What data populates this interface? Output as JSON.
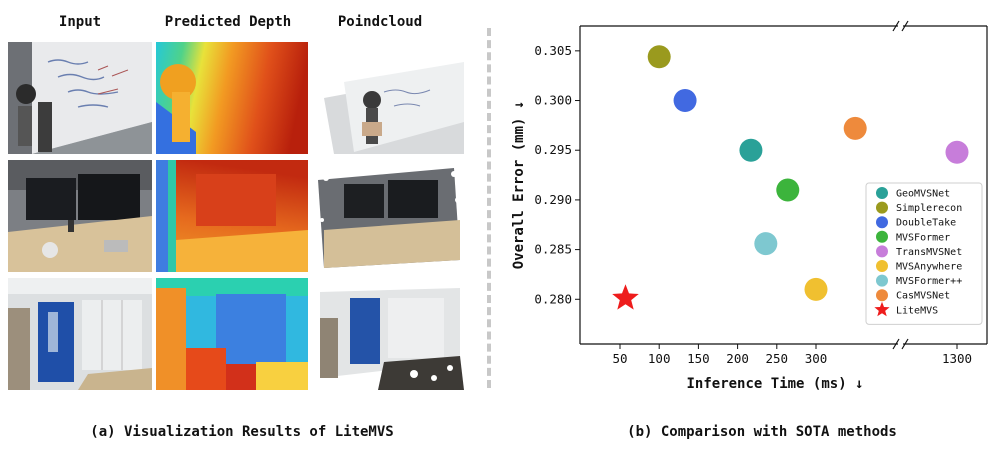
{
  "left_panel": {
    "headers": [
      "Input",
      "Predicted Depth",
      "Poindcloud"
    ],
    "caption": "(a) Visualization Results of LiteMVS"
  },
  "right_panel": {
    "caption": "(b) Comparison with SOTA methods"
  },
  "chart_data": {
    "type": "scatter",
    "title": "",
    "xlabel": "Inference Time (ms) ↓",
    "ylabel": "Overall Error (mm) ↓",
    "x_ticks": [
      "50",
      "100",
      "150",
      "200",
      "250",
      "300",
      "1300"
    ],
    "y_ticks": [
      "0.280",
      "0.285",
      "0.290",
      "0.295",
      "0.300",
      "0.305"
    ],
    "ylim": [
      0.2755,
      0.3075
    ],
    "xlim_segment_1": [
      22,
      368
    ],
    "xlim_segment_2": [
      1285,
      1310
    ],
    "x_axis_break": true,
    "grid": false,
    "legend_position": "right",
    "series": [
      {
        "name": "GeoMVSNet",
        "x": 217,
        "y": 0.295,
        "color": "#2aa198",
        "marker": "circle"
      },
      {
        "name": "Simplerecon",
        "x": 100,
        "y": 0.3044,
        "color": "#9a9a1e",
        "marker": "circle"
      },
      {
        "name": "DoubleTake",
        "x": 133,
        "y": 0.3,
        "color": "#4169e1",
        "marker": "circle"
      },
      {
        "name": "MVSFormer",
        "x": 264,
        "y": 0.291,
        "color": "#3cb43c",
        "marker": "circle"
      },
      {
        "name": "TransMVSNet",
        "x": 1300,
        "y": 0.2948,
        "color": "#c77dda",
        "marker": "circle"
      },
      {
        "name": "MVSAnywhere",
        "x": 300,
        "y": 0.281,
        "color": "#f0c030",
        "marker": "circle"
      },
      {
        "name": "MVSFormer++",
        "x": 236,
        "y": 0.2856,
        "color": "#7ec8d0",
        "marker": "circle"
      },
      {
        "name": "CasMVSNet",
        "x": 350,
        "y": 0.2972,
        "color": "#ee8a3c",
        "marker": "circle"
      },
      {
        "name": "LiteMVS",
        "x": 57,
        "y": 0.2801,
        "color": "#ee1c1c",
        "marker": "star"
      }
    ]
  }
}
